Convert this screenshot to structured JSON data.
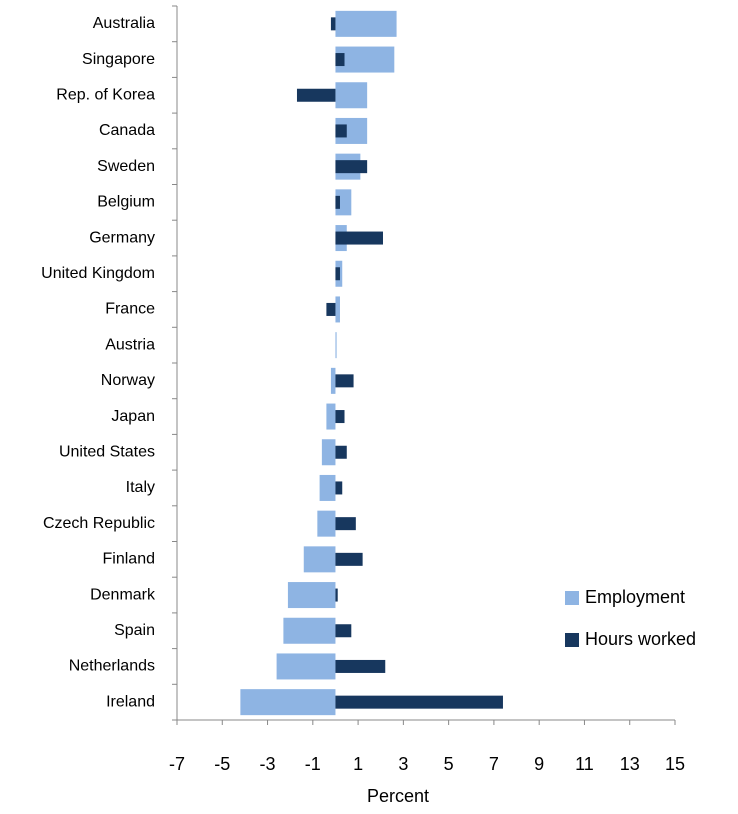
{
  "chart_data": {
    "type": "barh",
    "categories": [
      "Australia",
      "Singapore",
      "Rep. of Korea",
      "Canada",
      "Sweden",
      "Belgium",
      "Germany",
      "United Kingdom",
      "France",
      "Austria",
      "Norway",
      "Japan",
      "United States",
      "Italy",
      "Czech Republic",
      "Finland",
      "Denmark",
      "Spain",
      "Netherlands",
      "Ireland"
    ],
    "series": [
      {
        "name": "Employment",
        "color": "#8eb4e3",
        "values": [
          2.7,
          2.6,
          1.4,
          1.4,
          1.1,
          0.7,
          0.5,
          0.3,
          0.2,
          0.05,
          -0.2,
          -0.4,
          -0.6,
          -0.7,
          -0.8,
          -1.4,
          -2.1,
          -2.3,
          -2.6,
          -4.2
        ]
      },
      {
        "name": "Hours worked",
        "color": "#17375e",
        "values": [
          -0.2,
          0.4,
          -1.7,
          0.5,
          1.4,
          0.2,
          2.1,
          0.2,
          -0.4,
          0,
          0.8,
          0.4,
          0.5,
          0.3,
          0.9,
          1.2,
          0.1,
          0.7,
          2.2,
          7.4
        ]
      }
    ],
    "xlabel": "Percent",
    "xlim": [
      -7,
      15
    ],
    "xticks": [
      -7,
      -5,
      -3,
      -1,
      1,
      3,
      5,
      7,
      9,
      11,
      13,
      15
    ],
    "legend": "right"
  }
}
